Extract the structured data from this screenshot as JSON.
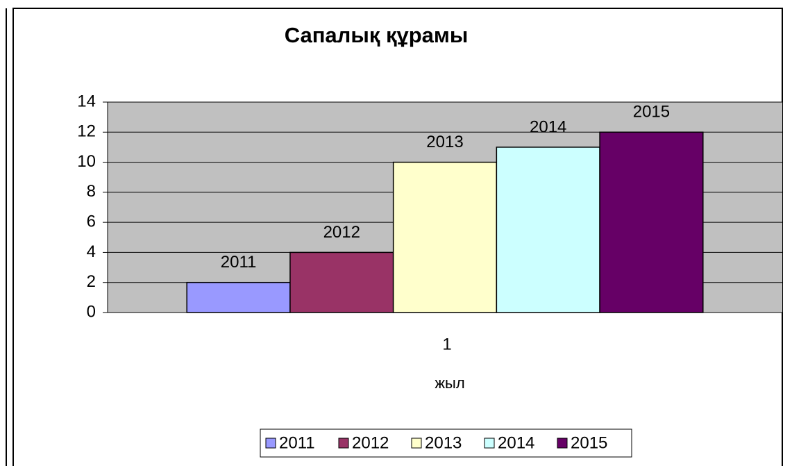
{
  "chart_data": {
    "type": "bar",
    "title": "Сапалық құрамы",
    "x_label": "жыл",
    "categories": [
      "1"
    ],
    "series": [
      {
        "name": "2011",
        "color": "#9999ff",
        "values": [
          2
        ]
      },
      {
        "name": "2012",
        "color": "#993366",
        "values": [
          4
        ]
      },
      {
        "name": "2013",
        "color": "#ffffcc",
        "values": [
          10
        ]
      },
      {
        "name": "2014",
        "color": "#ccffff",
        "values": [
          11
        ]
      },
      {
        "name": "2015",
        "color": "#660066",
        "values": [
          12
        ]
      }
    ],
    "ylim": [
      0,
      14
    ],
    "yticks": [
      0,
      2,
      4,
      6,
      8,
      10,
      12,
      14
    ],
    "grid": true,
    "legend": "bottom"
  }
}
